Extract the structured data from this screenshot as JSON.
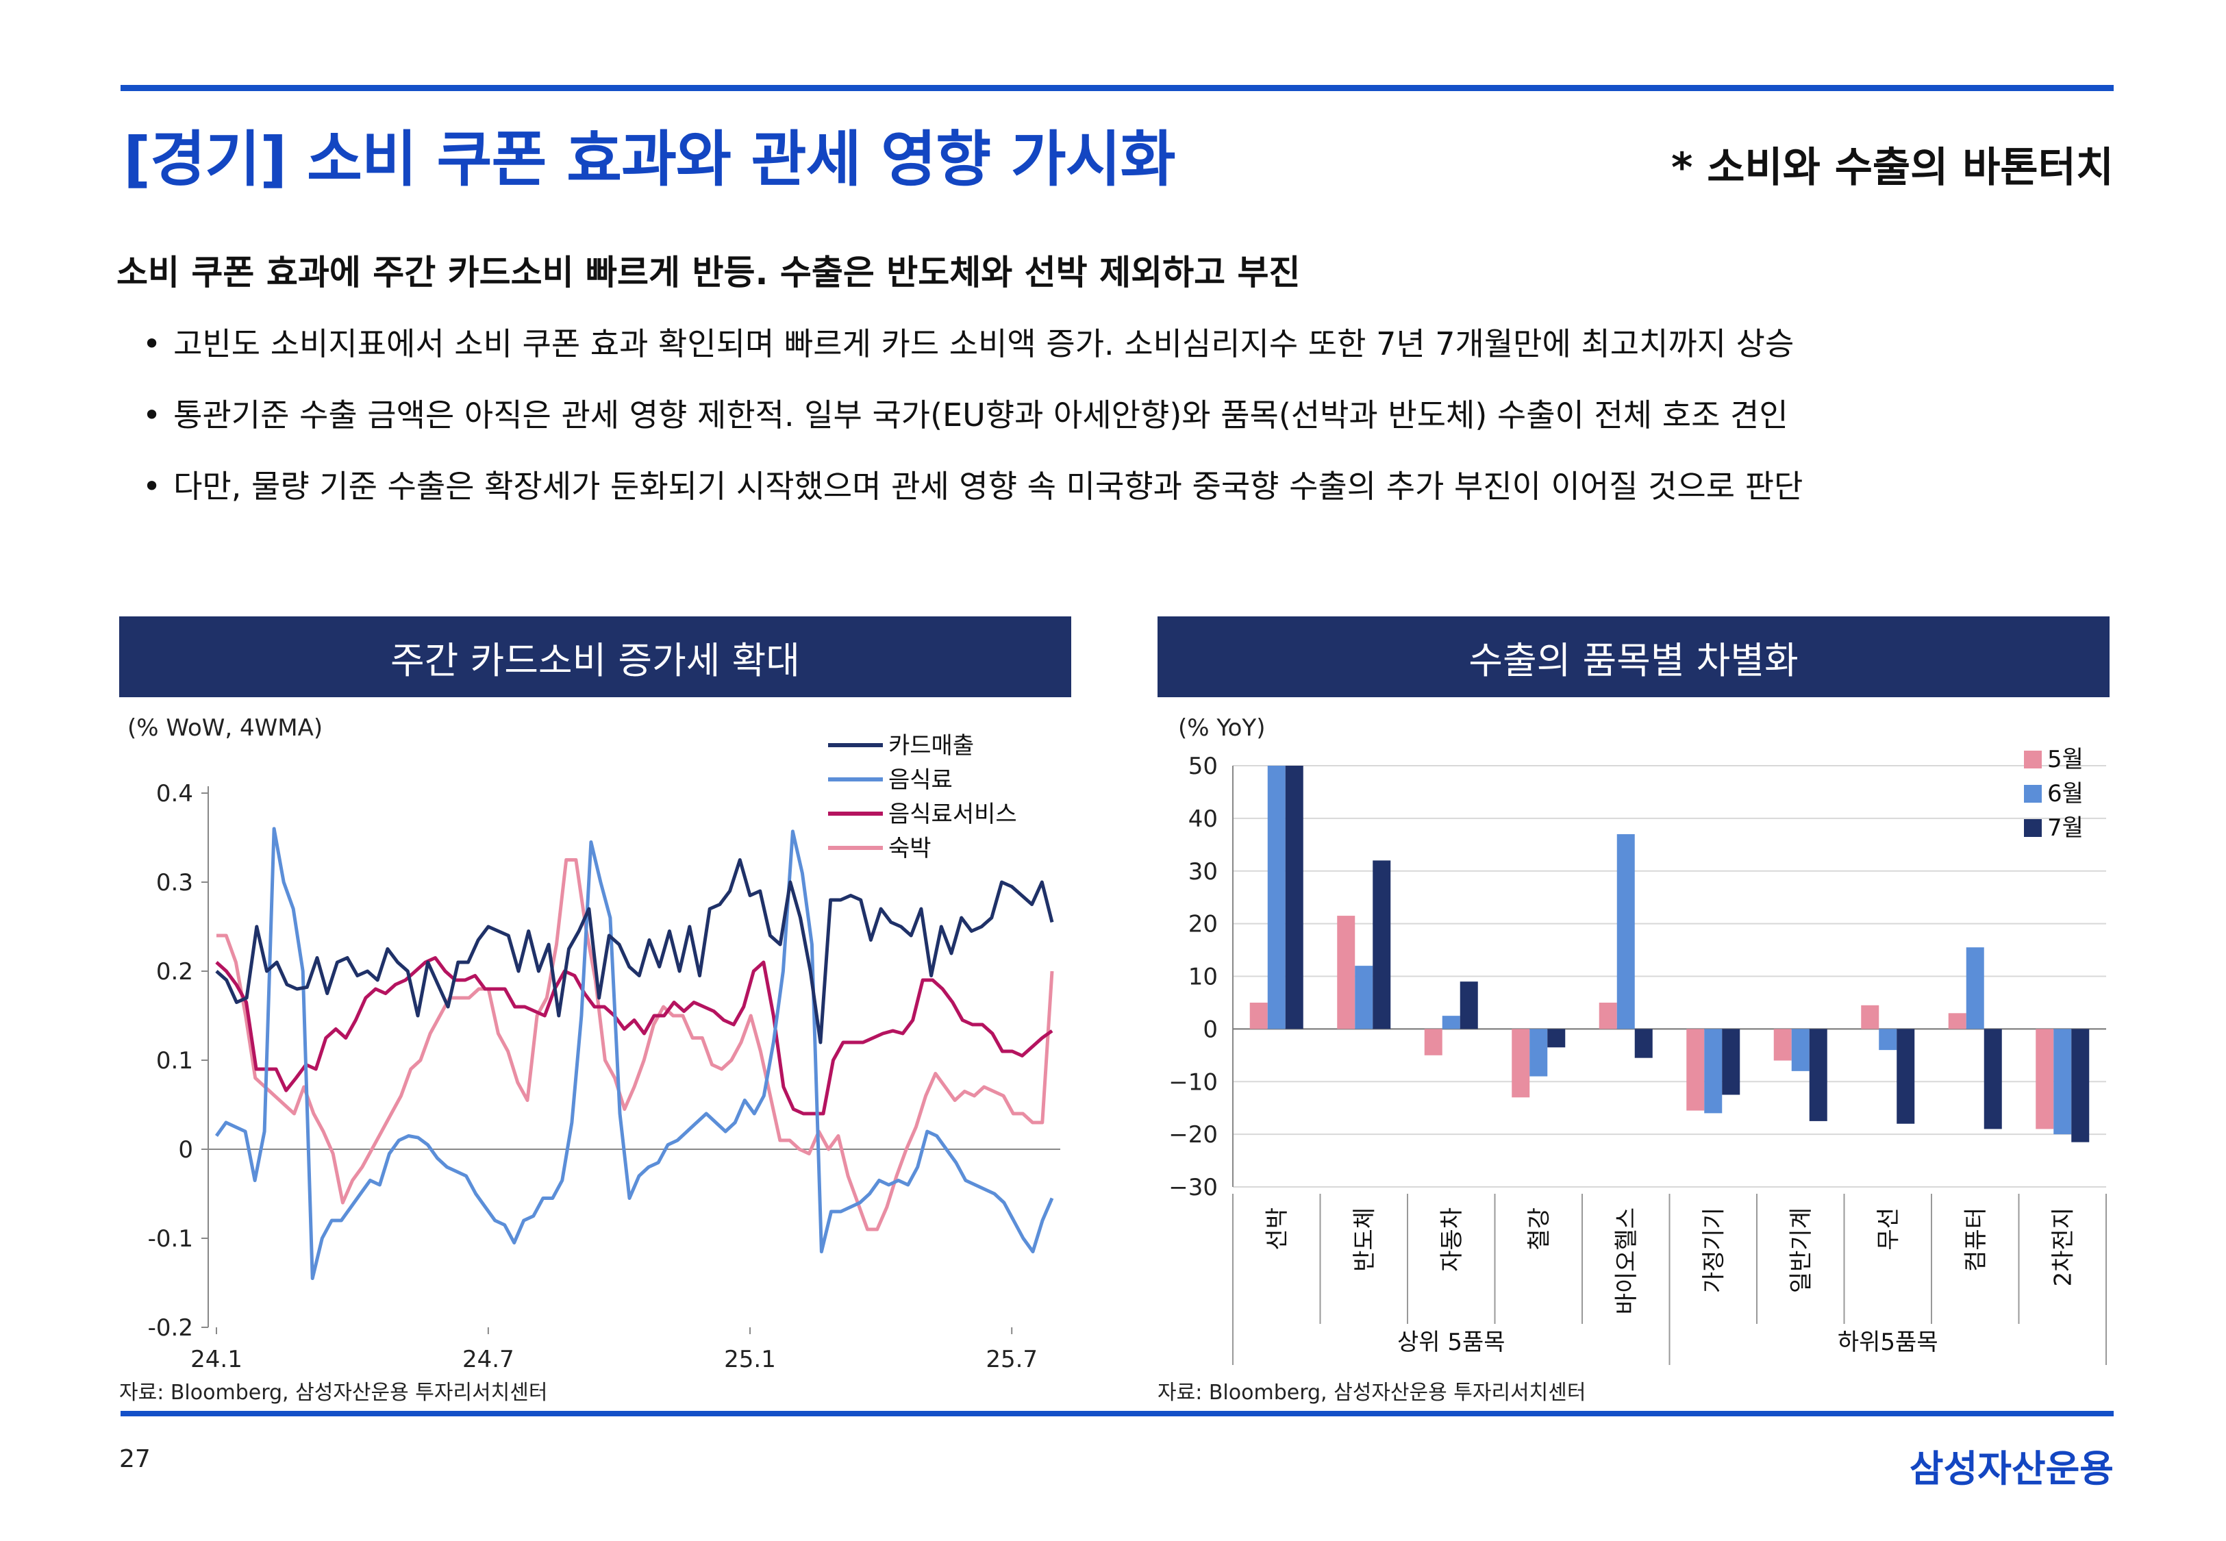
{
  "header": {
    "title": "[경기] 소비 쿠폰 효과와 관세 영향 가시화",
    "subtitle": "* 소비와 수출의 바톤터치"
  },
  "headline": "소비 쿠폰 효과에 주간 카드소비 빠르게 반등. 수출은 반도체와 선박 제외하고 부진",
  "bullets": [
    "고빈도 소비지표에서 소비 쿠폰 효과 확인되며 빠르게 카드 소비액 증가. 소비심리지수 또한 7년 7개월만에 최고치까지 상승",
    "통관기준 수출 금액은 아직은 관세 영향 제한적. 일부 국가(EU향과 아세안향)와 품목(선박과 반도체) 수출이 전체 호조 견인",
    "다만, 물량 기준 수출은 확장세가 둔화되기 시작했으며 관세 영향 속 미국향과 중국향 수출의 추가 부진이 이어질 것으로 판단"
  ],
  "colors": {
    "accent": "#1450c8",
    "panel_header": "#1f3168",
    "card": "#1f3168",
    "food": "#5b8ed8",
    "food_service": "#b5135f",
    "lodging": "#e98da3",
    "may": "#e88ea0",
    "june": "#5b8ed8",
    "july": "#1f3168"
  },
  "chart_data": [
    {
      "type": "line",
      "title": "주간 카드소비 증가세 확대",
      "unit_label": "(% WoW, 4WMA)",
      "x_ticks": [
        "24.1",
        "24.7",
        "25.1",
        "25.7"
      ],
      "ylim": [
        -0.2,
        0.4
      ],
      "y_ticks": [
        "0.4",
        "0.3",
        "0.2",
        "0.1",
        "0",
        "-0.1",
        "-0.2"
      ],
      "legend_position": "top-right",
      "series": [
        {
          "name": "카드매출",
          "color_key": "card",
          "values": [
            0.2,
            0.19,
            0.165,
            0.17,
            0.25,
            0.2,
            0.21,
            0.185,
            0.18,
            0.182,
            0.215,
            0.175,
            0.21,
            0.215,
            0.195,
            0.2,
            0.19,
            0.225,
            0.21,
            0.2,
            0.15,
            0.21,
            0.185,
            0.16,
            0.21,
            0.21,
            0.235,
            0.25,
            0.245,
            0.24,
            0.2,
            0.245,
            0.2,
            0.23,
            0.15,
            0.225,
            0.245,
            0.27,
            0.17,
            0.24,
            0.23,
            0.205,
            0.195,
            0.235,
            0.205,
            0.245,
            0.2,
            0.25,
            0.195,
            0.27,
            0.275,
            0.29,
            0.325,
            0.285,
            0.29,
            0.24,
            0.23,
            0.3,
            0.26,
            0.2,
            0.12,
            0.28,
            0.28,
            0.285,
            0.28,
            0.235,
            0.27,
            0.255,
            0.25,
            0.24,
            0.27,
            0.195,
            0.25,
            0.22,
            0.26,
            0.245,
            0.25,
            0.26,
            0.3,
            0.295,
            0.285,
            0.275,
            0.3,
            0.255
          ]
        },
        {
          "name": "음식료",
          "color_key": "food",
          "values": [
            0.015,
            0.03,
            0.025,
            0.02,
            -0.035,
            0.02,
            0.36,
            0.3,
            0.27,
            0.2,
            -0.145,
            -0.1,
            -0.08,
            -0.08,
            -0.065,
            -0.05,
            -0.035,
            -0.04,
            -0.005,
            0.01,
            0.015,
            0.013,
            0.005,
            -0.01,
            -0.02,
            -0.025,
            -0.03,
            -0.05,
            -0.065,
            -0.08,
            -0.085,
            -0.105,
            -0.08,
            -0.075,
            -0.055,
            -0.055,
            -0.035,
            0.03,
            0.15,
            0.345,
            0.3,
            0.26,
            0.04,
            -0.055,
            -0.03,
            -0.02,
            -0.015,
            0.005,
            0.01,
            0.02,
            0.03,
            0.04,
            0.03,
            0.02,
            0.03,
            0.055,
            0.04,
            0.06,
            0.12,
            0.2,
            0.357,
            0.31,
            0.23,
            -0.115,
            -0.07,
            -0.07,
            -0.065,
            -0.06,
            -0.05,
            -0.035,
            -0.04,
            -0.035,
            -0.04,
            -0.02,
            0.02,
            0.015,
            0.0,
            -0.015,
            -0.035,
            -0.04,
            -0.045,
            -0.05,
            -0.06,
            -0.08,
            -0.1,
            -0.115,
            -0.08,
            -0.055
          ]
        },
        {
          "name": "음식료서비스",
          "color_key": "food_service",
          "values": [
            0.21,
            0.2,
            0.185,
            0.165,
            0.09,
            0.09,
            0.09,
            0.066,
            0.08,
            0.095,
            0.09,
            0.125,
            0.135,
            0.125,
            0.145,
            0.17,
            0.18,
            0.175,
            0.185,
            0.19,
            0.2,
            0.21,
            0.215,
            0.2,
            0.19,
            0.19,
            0.195,
            0.18,
            0.18,
            0.18,
            0.16,
            0.16,
            0.155,
            0.15,
            0.18,
            0.2,
            0.195,
            0.175,
            0.16,
            0.16,
            0.15,
            0.135,
            0.145,
            0.13,
            0.15,
            0.15,
            0.165,
            0.155,
            0.165,
            0.16,
            0.155,
            0.145,
            0.14,
            0.16,
            0.2,
            0.21,
            0.15,
            0.07,
            0.045,
            0.04,
            0.04,
            0.04,
            0.1,
            0.12,
            0.12,
            0.12,
            0.125,
            0.13,
            0.133,
            0.13,
            0.145,
            0.19,
            0.19,
            0.18,
            0.165,
            0.145,
            0.14,
            0.14,
            0.13,
            0.11,
            0.11,
            0.105,
            0.115,
            0.125,
            0.133
          ]
        },
        {
          "name": "숙박",
          "color_key": "lodging",
          "values": [
            0.24,
            0.24,
            0.21,
            0.15,
            0.08,
            0.07,
            0.06,
            0.05,
            0.04,
            0.07,
            0.04,
            0.02,
            -0.005,
            -0.06,
            -0.035,
            -0.02,
            0.0,
            0.02,
            0.04,
            0.06,
            0.09,
            0.1,
            0.13,
            0.15,
            0.17,
            0.17,
            0.17,
            0.18,
            0.18,
            0.13,
            0.11,
            0.075,
            0.055,
            0.15,
            0.17,
            0.23,
            0.325,
            0.325,
            0.25,
            0.19,
            0.1,
            0.08,
            0.045,
            0.07,
            0.1,
            0.14,
            0.16,
            0.15,
            0.15,
            0.125,
            0.125,
            0.095,
            0.09,
            0.1,
            0.12,
            0.15,
            0.11,
            0.06,
            0.01,
            0.01,
            0.0,
            -0.005,
            0.02,
            0.0,
            0.015,
            -0.03,
            -0.06,
            -0.09,
            -0.09,
            -0.065,
            -0.03,
            0.0,
            0.025,
            0.06,
            0.085,
            0.07,
            0.055,
            0.065,
            0.06,
            0.07,
            0.065,
            0.06,
            0.04,
            0.04,
            0.03,
            0.03,
            0.2
          ]
        }
      ]
    },
    {
      "type": "bar",
      "title": "수출의 품목별 차별화",
      "unit_label": "(% YoY)",
      "ylim": [
        -30,
        50
      ],
      "y_ticks": [
        "50",
        "40",
        "30",
        "20",
        "10",
        "0",
        "−10",
        "−20",
        "−30"
      ],
      "legend_position": "top-right",
      "categories": [
        "선박",
        "반도체",
        "자동차",
        "철강",
        "바이오헬스",
        "가정기기",
        "일반기계",
        "무선",
        "컴퓨터",
        "2차전지"
      ],
      "groups": [
        {
          "label": "상위 5품목",
          "span": 5
        },
        {
          "label": "하위5품목",
          "span": 5
        }
      ],
      "series": [
        {
          "name": "5월",
          "color_key": "may",
          "values": [
            5,
            21.5,
            -5,
            -13,
            5,
            -15.5,
            -6,
            4.5,
            3,
            -19
          ]
        },
        {
          "name": "6월",
          "color_key": "june",
          "values": [
            50,
            12,
            2.5,
            -9,
            37,
            -16,
            -8,
            -4,
            15.5,
            -20
          ]
        },
        {
          "name": "7월",
          "color_key": "july",
          "values": [
            50,
            32,
            9,
            -3.5,
            -5.5,
            -12.5,
            -17.5,
            -18,
            -19,
            -21.5
          ]
        }
      ]
    }
  ],
  "left_panel": {
    "source": "자료: Bloomberg, 삼성자산운용 투자리서치센터"
  },
  "right_panel": {
    "source": "자료: Bloomberg, 삼성자산운용 투자리서치센터"
  },
  "footer": {
    "page_number": "27",
    "brand": "삼성자산운용"
  }
}
